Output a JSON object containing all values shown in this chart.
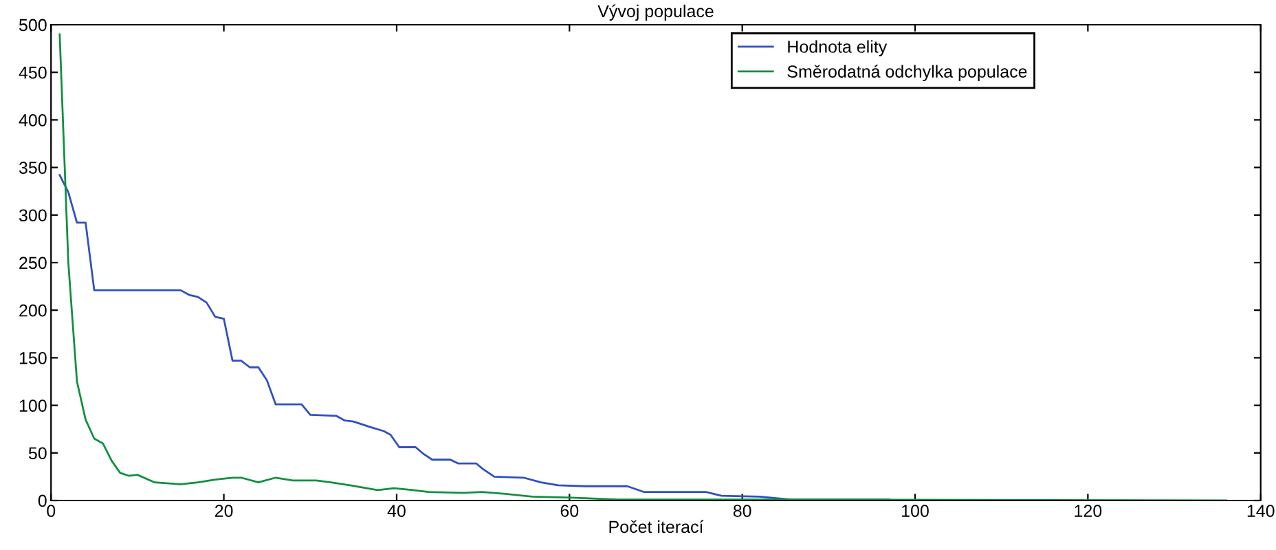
{
  "chart_data": {
    "type": "line",
    "title": "Vývoj populace",
    "xlabel": "Počet iterací",
    "xlim": [
      0,
      140
    ],
    "xticks": [
      0,
      20,
      40,
      60,
      80,
      100,
      120,
      140
    ],
    "ylim": [
      0,
      500
    ],
    "yticks": [
      0,
      50,
      100,
      150,
      200,
      250,
      300,
      350,
      400,
      450,
      500
    ],
    "grid": false,
    "legend": "top right",
    "marker": "none",
    "line_style": "solid",
    "series": [
      {
        "name": "Hodnota elity",
        "color": "#3050c0",
        "x": [
          1,
          2,
          3,
          4,
          5,
          15,
          16,
          17,
          18,
          19,
          20,
          21,
          22,
          23,
          24,
          25,
          26,
          29,
          30,
          33,
          34,
          35,
          37,
          38.5,
          39.3,
          40.3,
          42.2,
          43.1,
          44.1,
          46.2,
          47.1,
          49.2,
          50,
          51.3,
          54.7,
          56.7,
          58.7,
          61.8,
          66.7,
          68.6,
          75.8,
          77.6,
          82,
          85.6,
          97
        ],
        "values": [
          342,
          324,
          292,
          292,
          221,
          221,
          216,
          214,
          208,
          193,
          191,
          147,
          147,
          140,
          140,
          126,
          101,
          101,
          90,
          89,
          84,
          83,
          77,
          73,
          69,
          56,
          56,
          49,
          43,
          43,
          39,
          39,
          33,
          25,
          24,
          19,
          16,
          15,
          15,
          9,
          9,
          5,
          4,
          1,
          1
        ]
      },
      {
        "name": "Směrodatná odchylka populace",
        "color": "#109040",
        "x": [
          1,
          2,
          3,
          4,
          5,
          6,
          7,
          8,
          9,
          10,
          12,
          15,
          17,
          19,
          21,
          22,
          24,
          26,
          28,
          30.7,
          32.4,
          34.6,
          37.8,
          39.7,
          41.9,
          43.7,
          47.7,
          49.9,
          52.6,
          55.7,
          60.3,
          65.6,
          79.7,
          136
        ],
        "values": [
          490,
          250,
          125,
          85,
          65,
          60,
          42,
          29,
          26,
          27,
          19,
          17,
          19,
          22,
          24,
          24,
          19,
          24,
          21,
          21,
          19,
          16,
          11,
          13,
          11,
          9,
          8,
          9,
          7,
          4,
          3,
          1,
          1,
          0
        ]
      }
    ]
  }
}
